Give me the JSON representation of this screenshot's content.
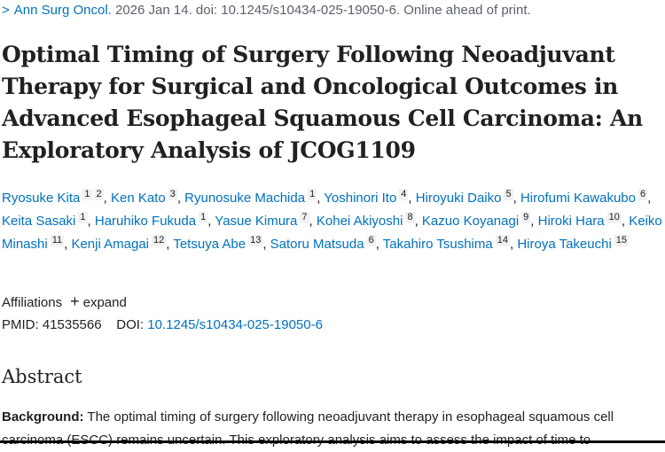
{
  "citation": {
    "journal": "Ann Surg Oncol.",
    "rest": "2026 Jan 14. doi: 10.1245/s10434-025-19050-6. Online ahead of print."
  },
  "title": "Optimal Timing of Surgery Following Neoadjuvant Therapy for Surgical and Oncological Outcomes in Advanced Esophageal Squamous Cell Carcinoma: An Exploratory Analysis of JCOG1109",
  "authors": [
    {
      "name": "Ryosuke Kita",
      "aff": [
        "1",
        "2"
      ]
    },
    {
      "name": "Ken Kato",
      "aff": [
        "3"
      ]
    },
    {
      "name": "Ryunosuke Machida",
      "aff": [
        "1"
      ]
    },
    {
      "name": "Yoshinori Ito",
      "aff": [
        "4"
      ]
    },
    {
      "name": "Hiroyuki Daiko",
      "aff": [
        "5"
      ]
    },
    {
      "name": "Hirofumi Kawakubo",
      "aff": [
        "6"
      ]
    },
    {
      "name": "Keita Sasaki",
      "aff": [
        "1"
      ]
    },
    {
      "name": "Haruhiko Fukuda",
      "aff": [
        "1"
      ]
    },
    {
      "name": "Yasue Kimura",
      "aff": [
        "7"
      ]
    },
    {
      "name": "Kohei Akiyoshi",
      "aff": [
        "8"
      ]
    },
    {
      "name": "Kazuo Koyanagi",
      "aff": [
        "9"
      ]
    },
    {
      "name": "Hiroki Hara",
      "aff": [
        "10"
      ]
    },
    {
      "name": "Keiko Minashi",
      "aff": [
        "11"
      ]
    },
    {
      "name": "Kenji Amagai",
      "aff": [
        "12"
      ]
    },
    {
      "name": "Tetsuya Abe",
      "aff": [
        "13"
      ]
    },
    {
      "name": "Satoru Matsuda",
      "aff": [
        "6"
      ]
    },
    {
      "name": "Takahiro Tsushima",
      "aff": [
        "14"
      ]
    },
    {
      "name": "Hiroya Takeuchi",
      "aff": [
        "15"
      ]
    }
  ],
  "affiliations": {
    "label": "Affiliations",
    "expand": "expand"
  },
  "ids": {
    "pmid_label": "PMID:",
    "pmid": "41535566",
    "doi_label": "DOI:",
    "doi": "10.1245/s10434-025-19050-6"
  },
  "abstract": {
    "heading": "Abstract",
    "background_label": "Background:",
    "background_text": "The optimal timing of surgery following neoadjuvant therapy in esophageal squamous cell carcinoma (ESCC) remains uncertain. This exploratory analysis aims to assess the impact of time to"
  },
  "colors": {
    "link": "#0071bc",
    "text": "#212121"
  }
}
